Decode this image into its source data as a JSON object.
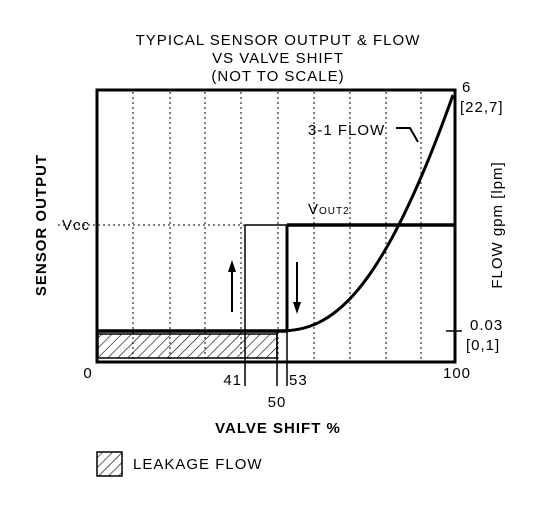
{
  "title": {
    "lines": [
      "TYPICAL SENSOR OUTPUT & FLOW",
      "VS VALVE SHIFT",
      "(NOT TO SCALE)"
    ]
  },
  "y_axis": {
    "label": "SENSOR OUTPUT",
    "level_label": "Vcc"
  },
  "x_axis": {
    "label": "VALVE SHIFT %",
    "ticks": [
      "0",
      "41",
      "53",
      "50",
      "100"
    ]
  },
  "right_axis": {
    "label": "FLOW gpm [lpm]",
    "top": [
      "6",
      "[22,7]"
    ],
    "bottom": [
      "0.03",
      "[0,1]"
    ]
  },
  "annotations": {
    "vout_main": "V",
    "vout_sub": "OUT2",
    "flow_curve": "3-1 FLOW"
  },
  "legend": {
    "label": "LEAKAGE FLOW"
  }
}
